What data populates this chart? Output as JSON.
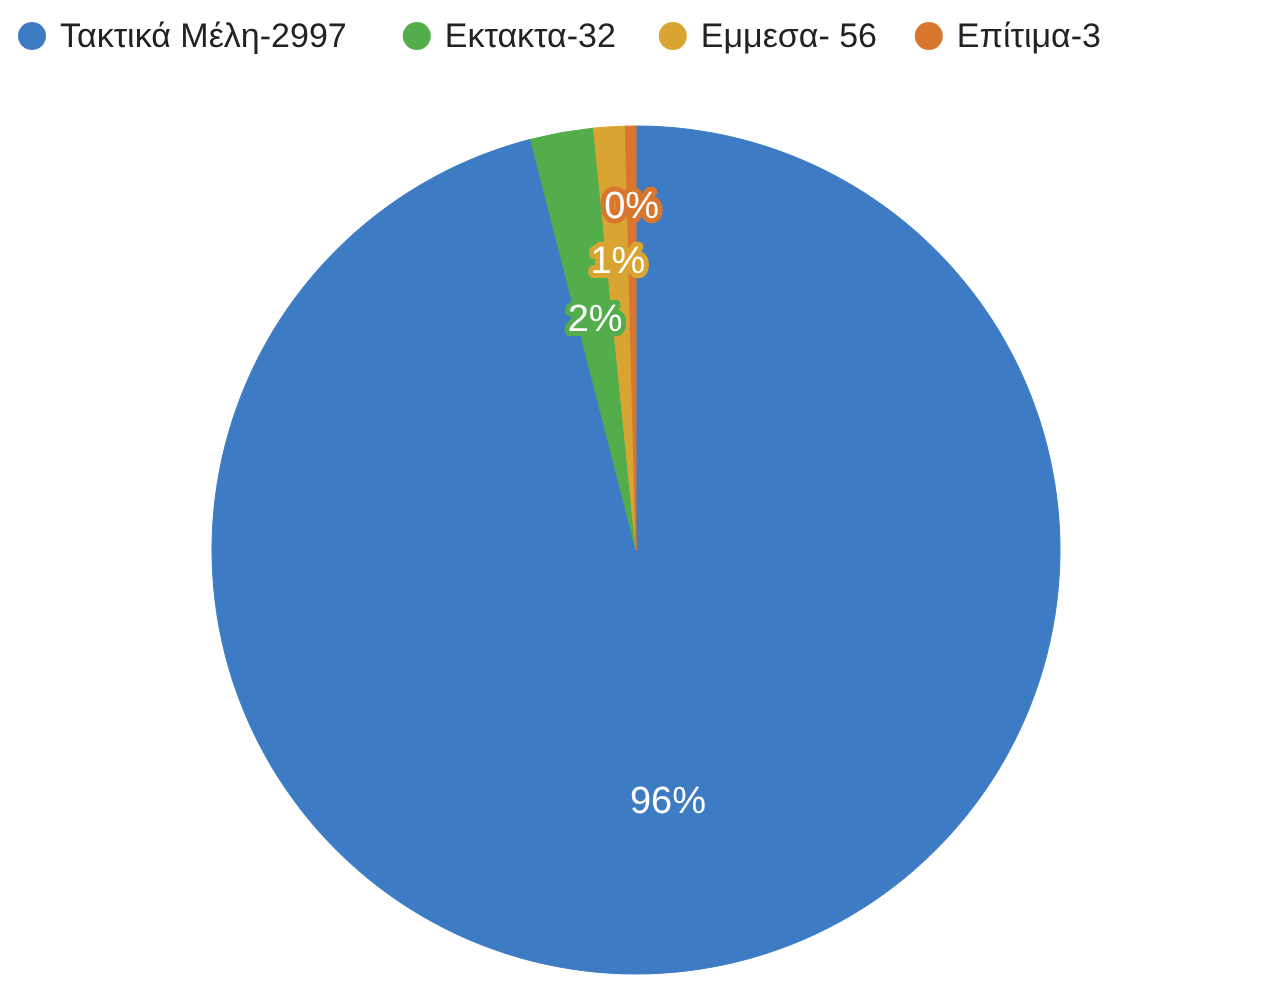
{
  "chart_data": {
    "type": "pie",
    "categories": [
      "Τακτικά Μέλη-2997",
      "Εκτακτα-32",
      "Εμμεσα- 56",
      "Επίτιμα-3"
    ],
    "values": [
      96,
      2.4,
      1.2,
      0.4
    ],
    "colors": [
      "#3d7cc4",
      "#52ad4a",
      "#d9a431",
      "#d8762f"
    ],
    "value_labels": [
      "96%",
      "2%",
      "1%",
      "0%"
    ],
    "legend": "top"
  }
}
